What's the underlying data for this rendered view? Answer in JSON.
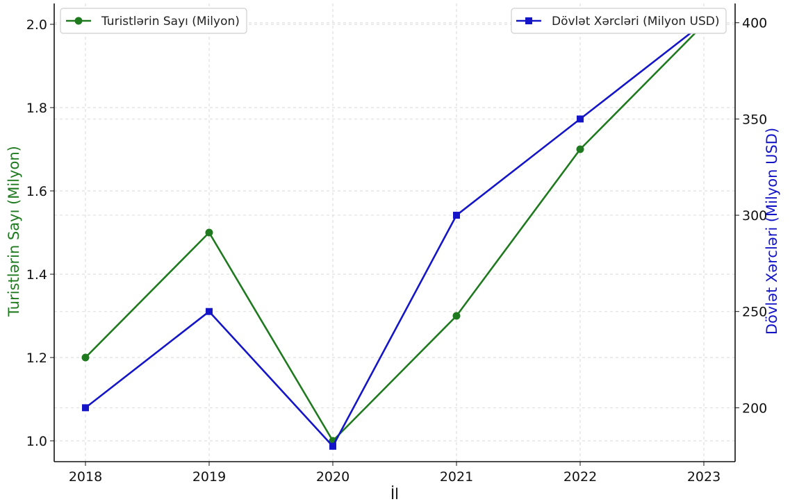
{
  "chart_data": {
    "type": "line",
    "categories": [
      "2018",
      "2019",
      "2020",
      "2021",
      "2022",
      "2023"
    ],
    "xlabel": "İl",
    "ylabel_left": "Turistlərin Sayı (Milyon)",
    "ylabel_right": "Dövlət Xərcləri (Milyon USD)",
    "ylim_left": [
      0.95,
      2.05
    ],
    "ylim_right": [
      172,
      410
    ],
    "yticks_left": [
      "1.0",
      "1.2",
      "1.4",
      "1.6",
      "1.8",
      "2.0"
    ],
    "yticks_right": [
      "200",
      "250",
      "300",
      "350",
      "400"
    ],
    "grid": true,
    "series": [
      {
        "name": "Turistlərin Sayı (Milyon)",
        "axis": "left",
        "color": "#1f7a1f",
        "marker": "circle",
        "legend_position": "top-left",
        "values": [
          1.2,
          1.5,
          1.0,
          1.3,
          1.7,
          2.0
        ]
      },
      {
        "name": "Dövlət Xərcləri (Milyon USD)",
        "axis": "right",
        "color": "#1515c8",
        "marker": "square",
        "legend_position": "top-right",
        "values": [
          200,
          250,
          180,
          300,
          350,
          400
        ]
      }
    ]
  }
}
